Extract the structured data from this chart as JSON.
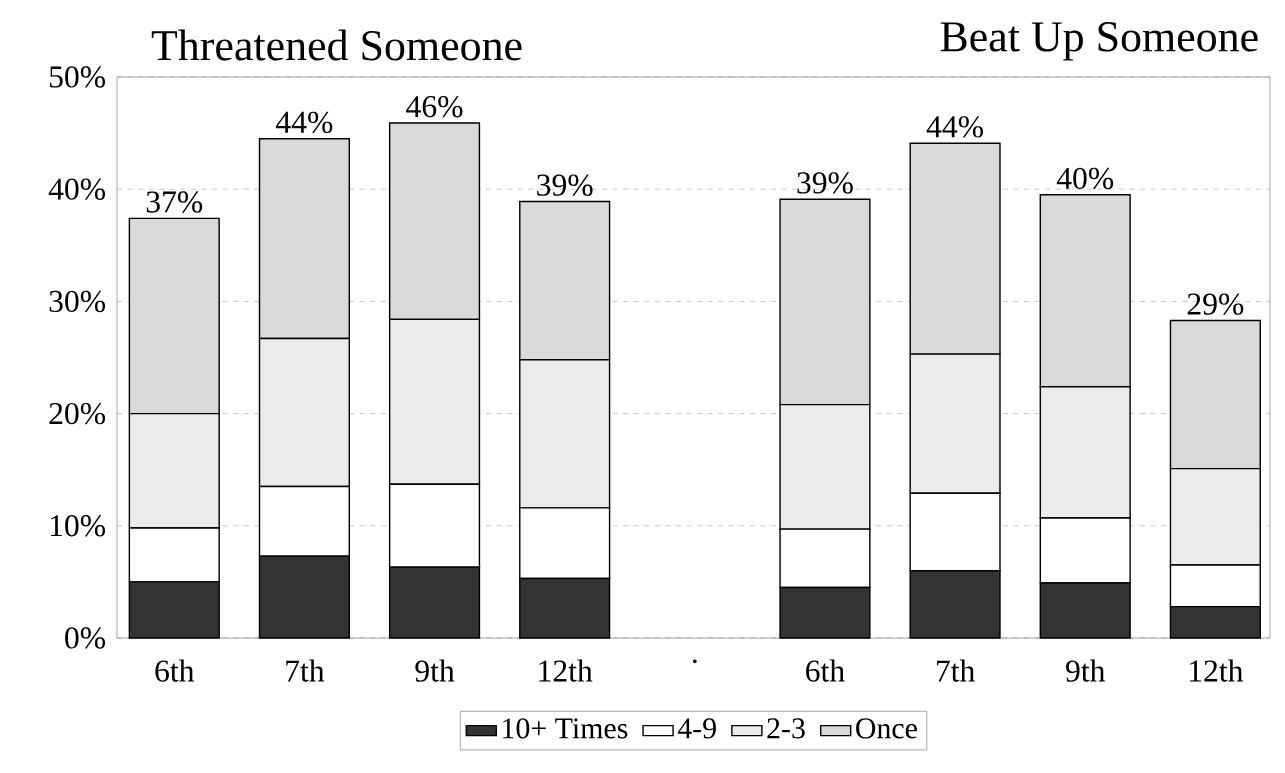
{
  "chart_data": {
    "type": "bar",
    "stacked": true,
    "categories": [
      "6th",
      "7th",
      "9th",
      "12th",
      ".",
      "6th",
      "7th",
      "9th",
      "12th"
    ],
    "series": [
      {
        "name": "10+ Times",
        "color": "#333333",
        "values": [
          5.0,
          7.3,
          6.3,
          5.3,
          null,
          4.5,
          6.0,
          4.9,
          2.8
        ]
      },
      {
        "name": "4-9",
        "color": "#ffffff",
        "values": [
          4.8,
          6.2,
          7.4,
          6.3,
          null,
          5.2,
          6.9,
          5.8,
          3.7
        ]
      },
      {
        "name": "2-3",
        "color": "#ebebeb",
        "values": [
          10.2,
          13.2,
          14.7,
          13.2,
          null,
          11.1,
          12.4,
          11.7,
          8.6
        ]
      },
      {
        "name": "Once",
        "color": "#d9d9d9",
        "values": [
          17.4,
          17.8,
          17.5,
          14.1,
          null,
          18.3,
          18.8,
          17.1,
          13.2
        ]
      }
    ],
    "totals": [
      "37%",
      "44%",
      "46%",
      "39%",
      null,
      "39%",
      "44%",
      "40%",
      "29%"
    ],
    "annotations": [
      "Threatened Someone",
      "Beat Up Someone"
    ],
    "ylim": [
      0,
      50
    ],
    "yticks": [
      {
        "value": 0,
        "label": "0%"
      },
      {
        "value": 10,
        "label": "10%"
      },
      {
        "value": 20,
        "label": "20%"
      },
      {
        "value": 30,
        "label": "30%"
      },
      {
        "value": 40,
        "label": "40%"
      },
      {
        "value": 50,
        "label": "50%"
      }
    ],
    "grid": "y",
    "legend": "bottom"
  }
}
